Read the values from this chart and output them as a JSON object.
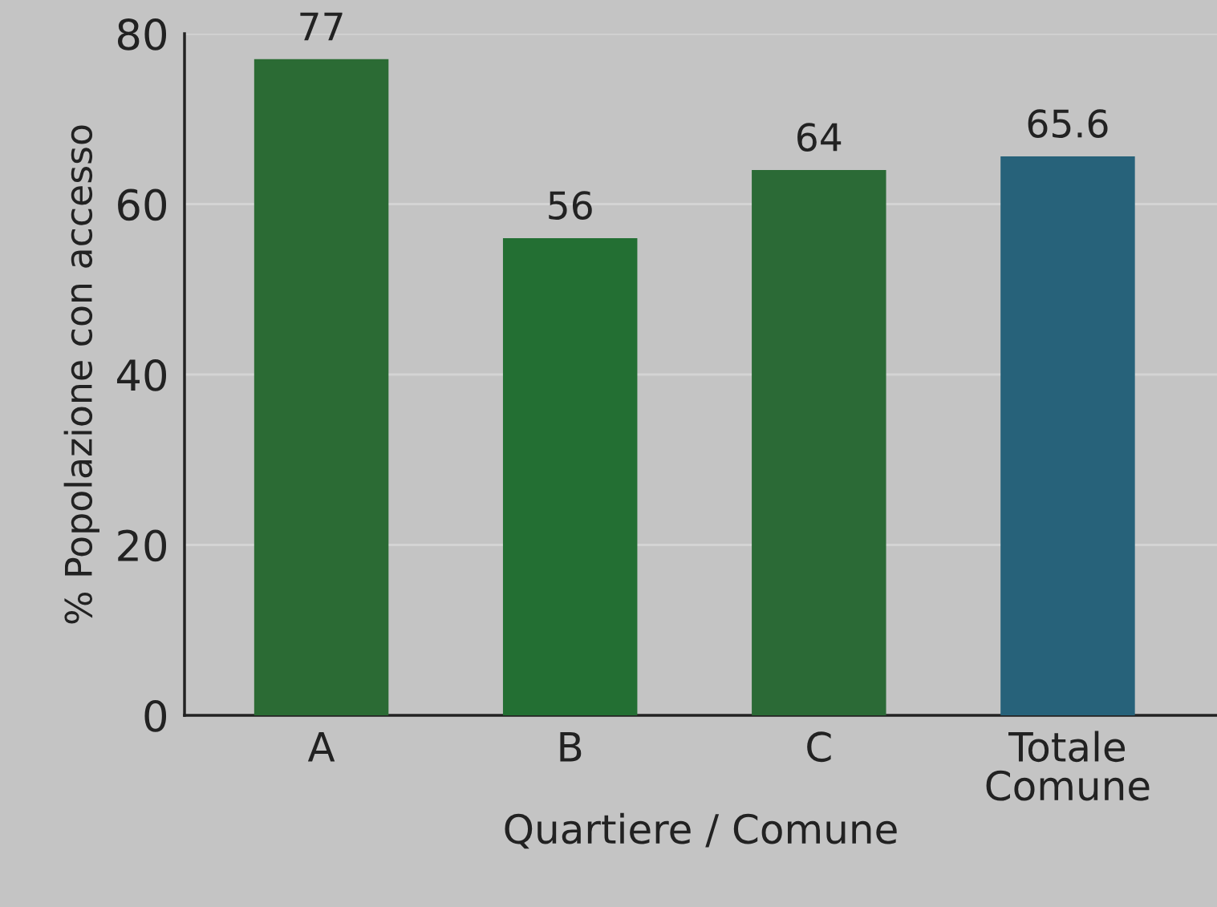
{
  "chart_data": {
    "type": "bar",
    "xlabel": "Quartiere / Comune",
    "ylabel": "% Popolazione con accesso",
    "categories": [
      "A",
      "B",
      "C",
      "Totale\nComune"
    ],
    "values": [
      77,
      56,
      64,
      65.6
    ],
    "colors": [
      "#2b6b34",
      "#236f33",
      "#2b6a36",
      "#27627a"
    ],
    "ylim": [
      0,
      80
    ],
    "yticks": [
      0,
      20,
      40,
      60,
      80
    ],
    "grid": "y",
    "data_labels": true,
    "legend": false
  }
}
